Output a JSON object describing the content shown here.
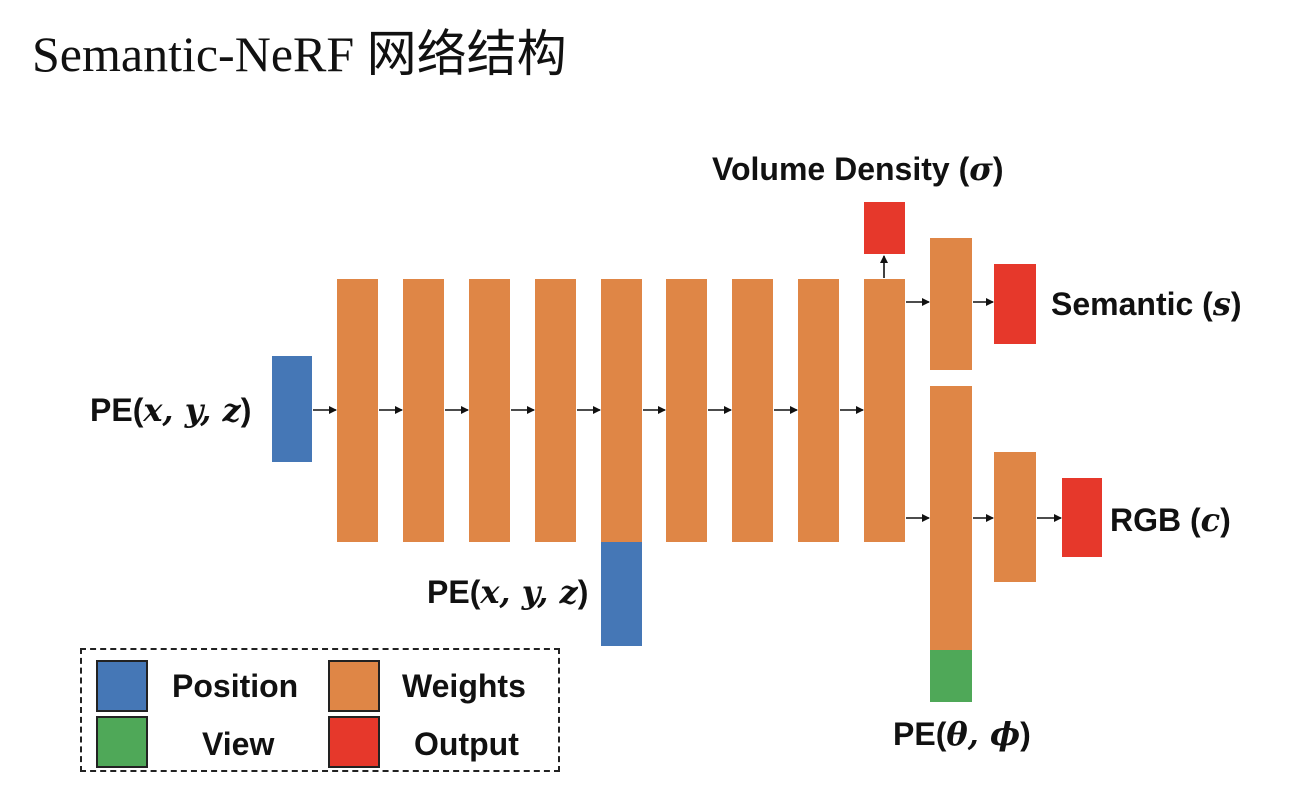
{
  "title": "Semantic-NeRF 网络结构",
  "colors": {
    "position": "#4577b6",
    "weights": "#df8646",
    "view": "#4fa858",
    "output": "#e6382b",
    "arrow": "#111111"
  },
  "labels": {
    "pe_xyz_input": {
      "prefix": "PE(",
      "math": "x, y, z",
      "suffix": ")"
    },
    "pe_xyz_skip": {
      "prefix": "PE(",
      "math": "x, y, z",
      "suffix": ")"
    },
    "pe_view": {
      "prefix": "PE(",
      "math": "θ, ϕ",
      "suffix": ")"
    },
    "volume_density": {
      "prefix": "Volume Density (",
      "math": "σ",
      "suffix": ")"
    },
    "semantic": {
      "prefix": "Semantic (",
      "math": "s",
      "suffix": ")"
    },
    "rgb": {
      "prefix": "RGB (",
      "math": "c",
      "suffix": ")"
    }
  },
  "legend": {
    "position": "Position",
    "weights": "Weights",
    "view": "View",
    "output": "Output"
  }
}
